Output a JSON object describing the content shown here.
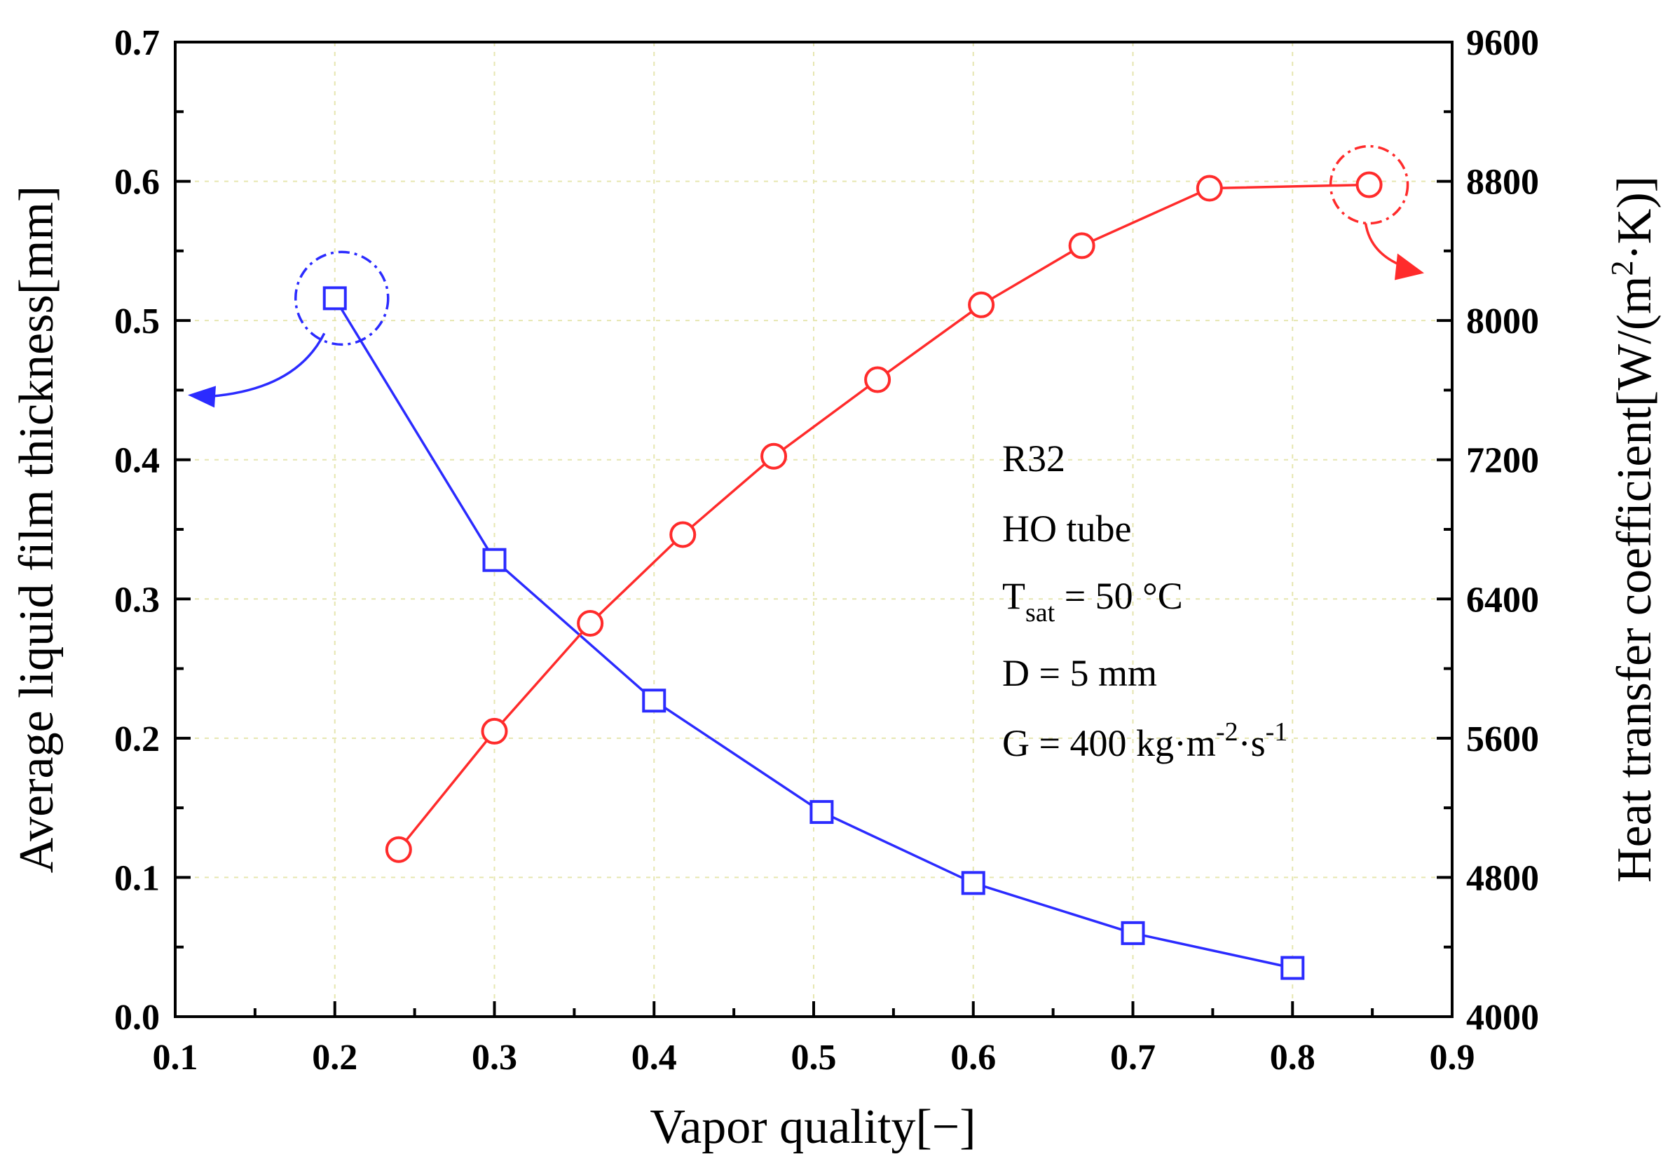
{
  "chart_data": {
    "type": "line",
    "title": "",
    "xlabel": "Vapor quality[−]",
    "ylabel_left": "Average liquid film thickness[mm]",
    "ylabel_right_parts": [
      "Heat transfer coefficient[W/(m",
      "2",
      "·K)]"
    ],
    "xlim": [
      0.1,
      0.9
    ],
    "ylim_left": [
      0.0,
      0.7
    ],
    "ylim_right": [
      4000,
      9600
    ],
    "x_ticks": [
      "0.1",
      "0.2",
      "0.3",
      "0.4",
      "0.5",
      "0.6",
      "0.7",
      "0.8",
      "0.9"
    ],
    "y_ticks_left": [
      "0.0",
      "0.1",
      "0.2",
      "0.3",
      "0.4",
      "0.5",
      "0.6",
      "0.7"
    ],
    "y_ticks_right": [
      "4000",
      "4800",
      "5600",
      "6400",
      "7200",
      "8000",
      "8800",
      "9600"
    ],
    "grid": true,
    "series": [
      {
        "name": "Average liquid film thickness",
        "axis": "left",
        "color": "#2b2bff",
        "marker": "square",
        "x": [
          0.2,
          0.3,
          0.4,
          0.505,
          0.6,
          0.7,
          0.8
        ],
        "y": [
          0.516,
          0.328,
          0.227,
          0.147,
          0.096,
          0.06,
          0.035
        ]
      },
      {
        "name": "Heat transfer coefficient",
        "axis": "right",
        "color": "#ff2b2b",
        "marker": "circle",
        "x": [
          0.24,
          0.3,
          0.36,
          0.418,
          0.475,
          0.54,
          0.605,
          0.668,
          0.748,
          0.848
        ],
        "y": [
          4960,
          5640,
          6260,
          6770,
          7220,
          7660,
          8090,
          8430,
          8760,
          8780
        ]
      }
    ],
    "annotations": {
      "lines": [
        {
          "text": "R32"
        },
        {
          "text": "HO tube"
        },
        {
          "main": "T",
          "sub": "sat",
          "rest": " = 50 °C"
        },
        {
          "text": "D = 5 mm"
        },
        {
          "pre": "G = 400 kg·m",
          "sup1": "-2",
          "mid": "·s",
          "sup2": "-1"
        }
      ],
      "left_arrow": {
        "series": "Average liquid film thickness",
        "x": 0.2,
        "y": 0.516,
        "points_to": "left axis"
      },
      "right_arrow": {
        "series": "Heat transfer coefficient",
        "x": 0.848,
        "y": 8780,
        "points_to": "right axis"
      }
    }
  }
}
